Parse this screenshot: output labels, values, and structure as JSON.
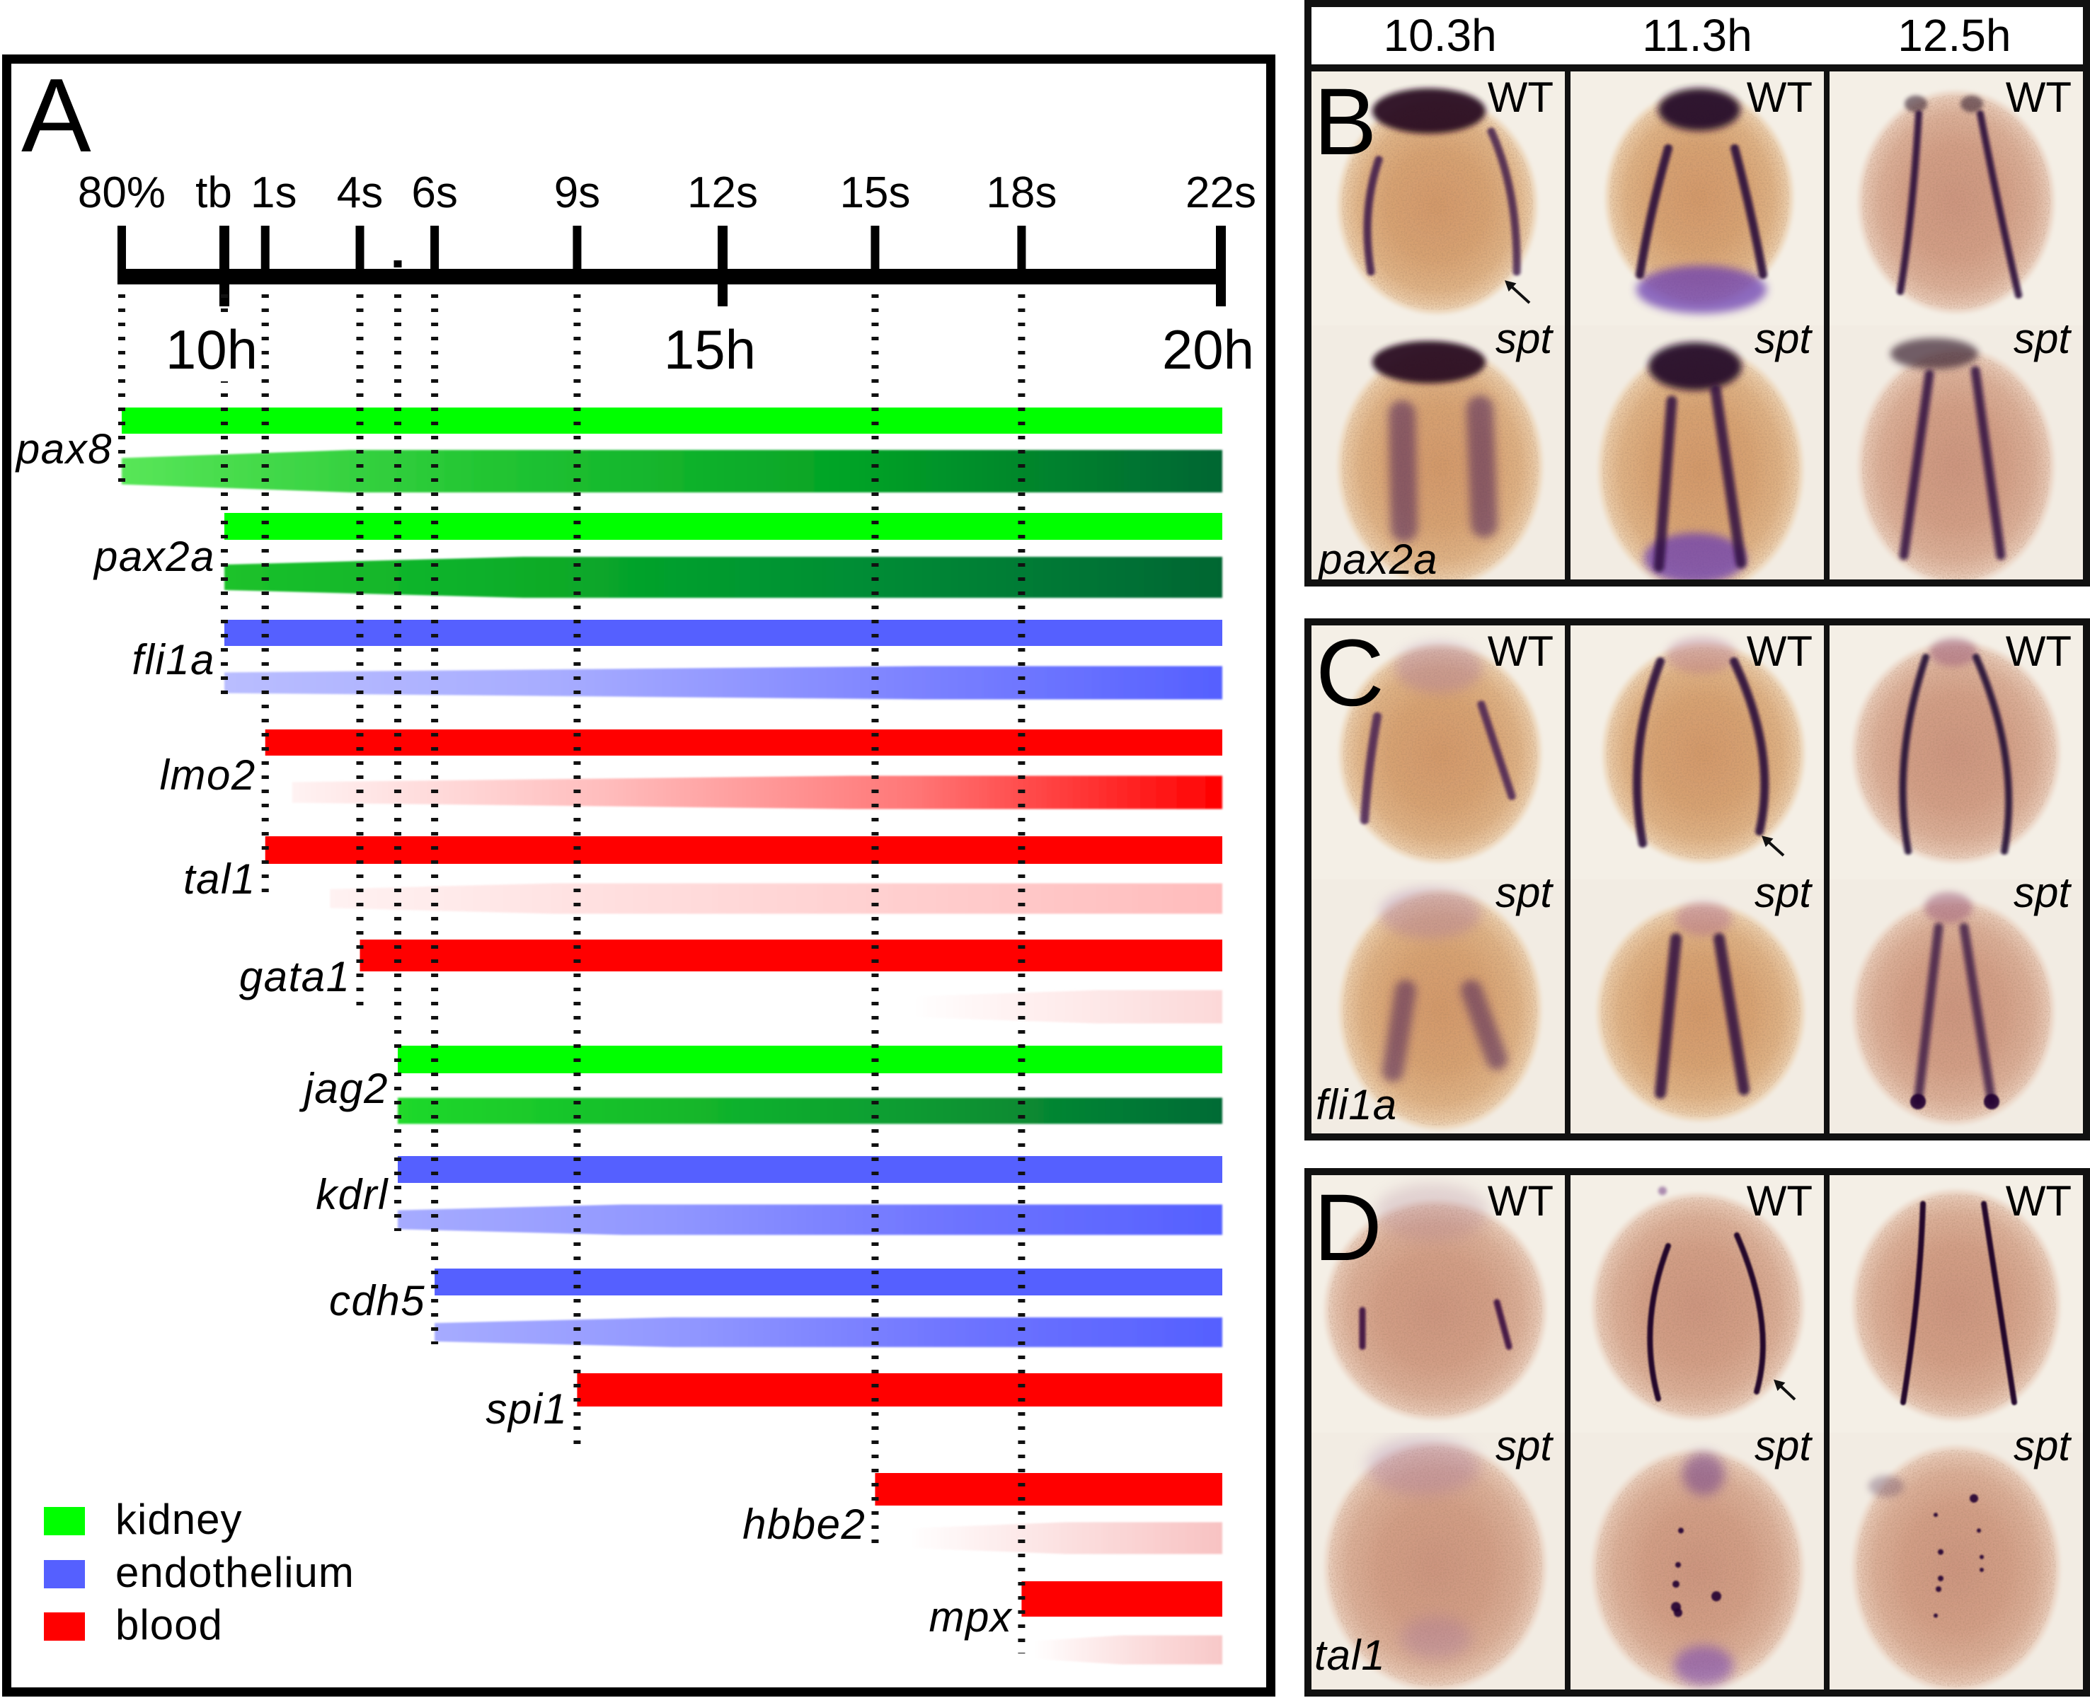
{
  "panel_a": {
    "letter": "A",
    "axis_range_h": [
      8.97,
      20.0
    ],
    "stages": [
      {
        "label": "80%",
        "hour": 8.97
      },
      {
        "label": "tb",
        "hour": 10.0
      },
      {
        "label": "1s",
        "hour": 10.41
      },
      {
        "label": "4s",
        "hour": 11.36
      },
      {
        "label": "",
        "hour": 11.74,
        "minor": true
      },
      {
        "label": "6s",
        "hour": 12.11
      },
      {
        "label": "9s",
        "hour": 13.54
      },
      {
        "label": "12s",
        "hour": 15.0
      },
      {
        "label": "15s",
        "hour": 16.53
      },
      {
        "label": "18s",
        "hour": 18.0
      },
      {
        "label": "22s",
        "hour": 20.0
      }
    ],
    "hours": [
      {
        "label": "10h",
        "hour": 10
      },
      {
        "label": "15h",
        "hour": 15
      },
      {
        "label": "20h",
        "hour": 20
      }
    ],
    "genes": [
      {
        "name": "pax8",
        "color": "#00ff00",
        "wt_start_h": 8.97,
        "spt": {
          "onset_h": 8.97,
          "full_h": 11.26,
          "stops": [
            "#58e658",
            "#22c532",
            "#03a226",
            "#006633"
          ]
        }
      },
      {
        "name": "pax2a",
        "color": "#00ff00",
        "wt_start_h": 10.0,
        "spt": {
          "onset_h": 10.0,
          "full_h": 13.0,
          "stops": [
            "#1cc22c",
            "#08aa28",
            "#008a36",
            "#006633"
          ]
        }
      },
      {
        "name": "fli1a",
        "color": "#5560ff",
        "wt_start_h": 10.0,
        "spt": {
          "onset_h": 10.0,
          "full_h": 17.0,
          "stops": [
            "#b9bdff",
            "#a7acff",
            "#7f85ff",
            "#5560ff"
          ]
        }
      },
      {
        "name": "lmo2",
        "color": "#ff0000",
        "wt_start_h": 10.41,
        "spt": {
          "onset_h": 10.68,
          "full_h": 16.29,
          "stops": [
            "#fff3f3",
            "#ffbdbd",
            "#ff7777",
            "#ff0000"
          ]
        }
      },
      {
        "name": "tal1",
        "color": "#ff0000",
        "wt_start_h": 10.41,
        "spt": {
          "onset_h": 11.06,
          "full_h": 13.3,
          "stops": [
            "#fff2f2",
            "#ffdede",
            "#ffcdcd",
            "#ffbcbc"
          ]
        }
      },
      {
        "name": "gata1",
        "color": "#ff0000",
        "wt_start_h": 11.36,
        "spt": {
          "onset_h": 16.89,
          "full_h": 18.76,
          "stops": [
            "#ffffff",
            "#fff1f1",
            "#fde5e5",
            "#fcd8d8"
          ]
        }
      },
      {
        "name": "jag2",
        "color": "#00ff00",
        "wt_start_h": 11.74,
        "spt": {
          "onset_h": 11.74,
          "full_h": 11.74,
          "stops": [
            "#20d92b",
            "#13b92b",
            "#0a9632",
            "#006b35"
          ]
        }
      },
      {
        "name": "kdrl",
        "color": "#5560ff",
        "wt_start_h": 11.74,
        "spt": {
          "onset_h": 11.74,
          "full_h": 14.0,
          "stops": [
            "#a6abff",
            "#9096ff",
            "#6e74ff",
            "#5560ff"
          ]
        }
      },
      {
        "name": "cdh5",
        "color": "#5560ff",
        "wt_start_h": 12.11,
        "spt": {
          "onset_h": 12.11,
          "full_h": 14.5,
          "stops": [
            "#a6abff",
            "#9096ff",
            "#6e74ff",
            "#5560ff"
          ]
        }
      },
      {
        "name": "spi1",
        "color": "#ff0000",
        "wt_start_h": 13.54,
        "spt": null
      },
      {
        "name": "hbbe2",
        "color": "#ff0000",
        "wt_start_h": 16.53,
        "spt": {
          "onset_h": 16.86,
          "full_h": 18.45,
          "stops": [
            "#ffffff",
            "#fdeaea",
            "#fad6d6",
            "#f8c2c2"
          ]
        }
      },
      {
        "name": "mpx",
        "color": "#ff0000",
        "wt_start_h": 18.0,
        "spt": {
          "onset_h": 18.12,
          "full_h": 19.0,
          "stops": [
            "#ffffff",
            "#fdeaea",
            "#fad8d8",
            "#f8c8c8"
          ]
        }
      }
    ],
    "legend": [
      {
        "label": "kidney",
        "color": "#00ff00"
      },
      {
        "label": "endothelium",
        "color": "#5560ff"
      },
      {
        "label": "blood",
        "color": "#ff0000"
      }
    ]
  },
  "time_header": {
    "labels": [
      "10.3h",
      "11.3h",
      "12.5h"
    ]
  },
  "panels": [
    {
      "letter": "B",
      "gene": "pax2a",
      "row_labels": [
        "WT",
        "spt"
      ]
    },
    {
      "letter": "C",
      "gene": "fli1a",
      "row_labels": [
        "WT",
        "spt"
      ]
    },
    {
      "letter": "D",
      "gene": "tal1",
      "row_labels": [
        "WT",
        "spt"
      ]
    }
  ]
}
